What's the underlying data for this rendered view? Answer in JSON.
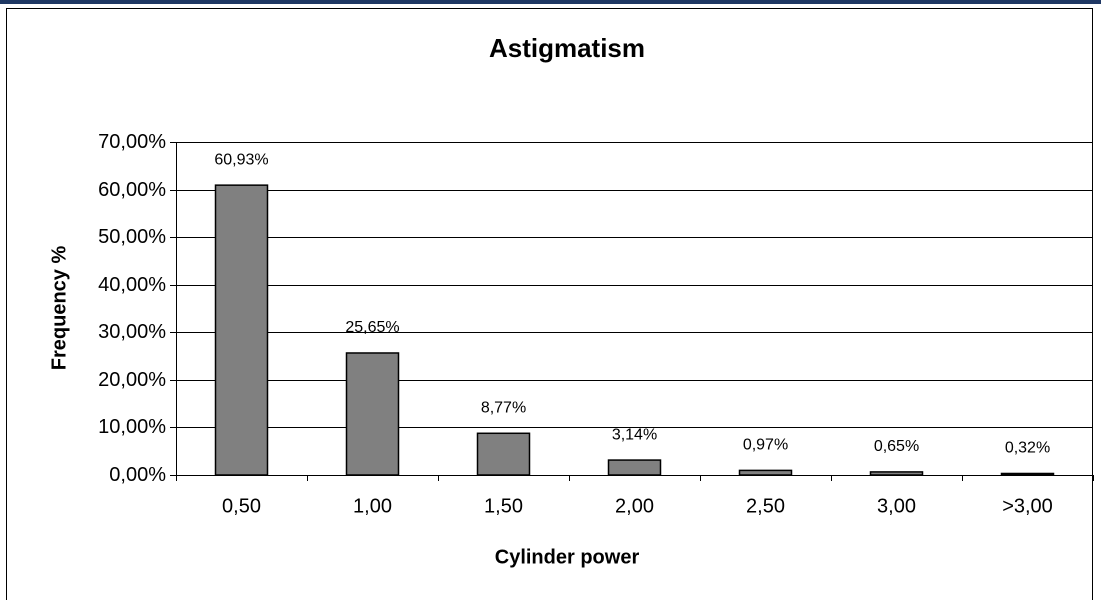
{
  "chart_data": {
    "type": "bar",
    "title": "Astigmatism",
    "x_label": "Cylinder power",
    "y_label": "Frequency %",
    "categories": [
      "0,50",
      "1,00",
      "1,50",
      "2,00",
      "2,50",
      "3,00",
      ">3,00"
    ],
    "values": [
      60.93,
      25.65,
      8.77,
      3.14,
      0.97,
      0.65,
      0.32
    ],
    "value_labels": [
      "60,93%",
      "25,65%",
      "8,77%",
      "3,14%",
      "0,97%",
      "0,65%",
      "0,32%"
    ],
    "color": "#808080",
    "ylim": [
      0,
      70
    ],
    "yticks": [
      {
        "value": 0,
        "label": "0,00%"
      },
      {
        "value": 10,
        "label": "10,00%"
      },
      {
        "value": 20,
        "label": "20,00%"
      },
      {
        "value": 30,
        "label": "30,00%"
      },
      {
        "value": 40,
        "label": "40,00%"
      },
      {
        "value": 50,
        "label": "50,00%"
      },
      {
        "value": 60,
        "label": "60,00%"
      },
      {
        "value": 70,
        "label": "70,00%"
      }
    ],
    "grid": true
  }
}
